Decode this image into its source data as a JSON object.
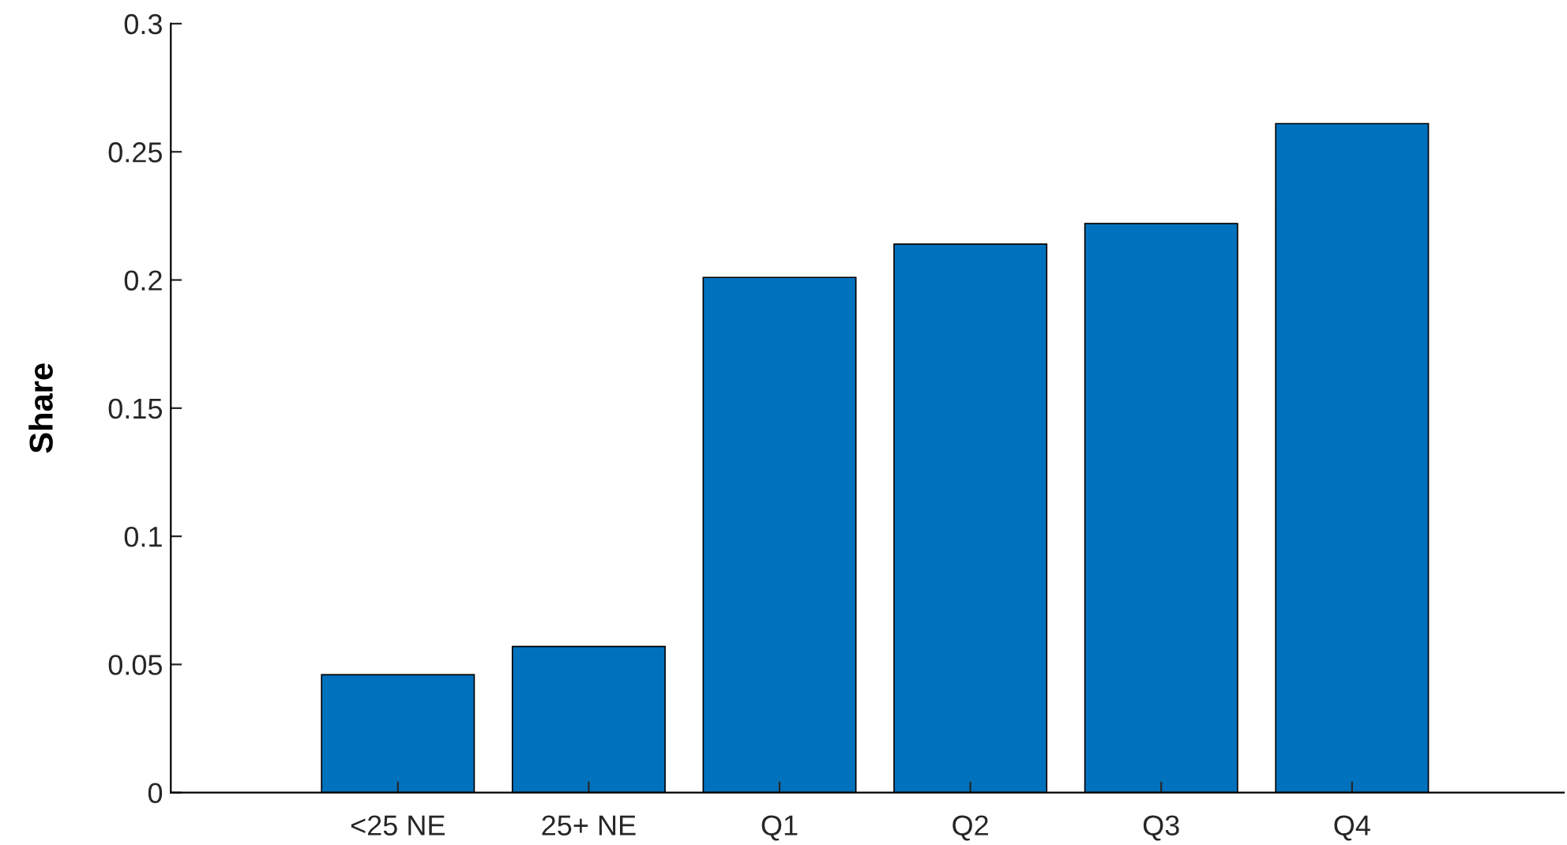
{
  "chart_data": {
    "type": "bar",
    "ylabel": "Share",
    "categories": [
      "<25 NE",
      "25+ NE",
      "Q1",
      "Q2",
      "Q3",
      "Q4"
    ],
    "values": [
      0.046,
      0.057,
      0.201,
      0.214,
      0.222,
      0.261
    ],
    "color": "#0072bd",
    "ylim": [
      0,
      0.3
    ],
    "yticks": [
      0,
      0.05,
      0.1,
      0.15,
      0.2,
      0.25,
      0.3
    ],
    "grid": false,
    "legend": false
  }
}
